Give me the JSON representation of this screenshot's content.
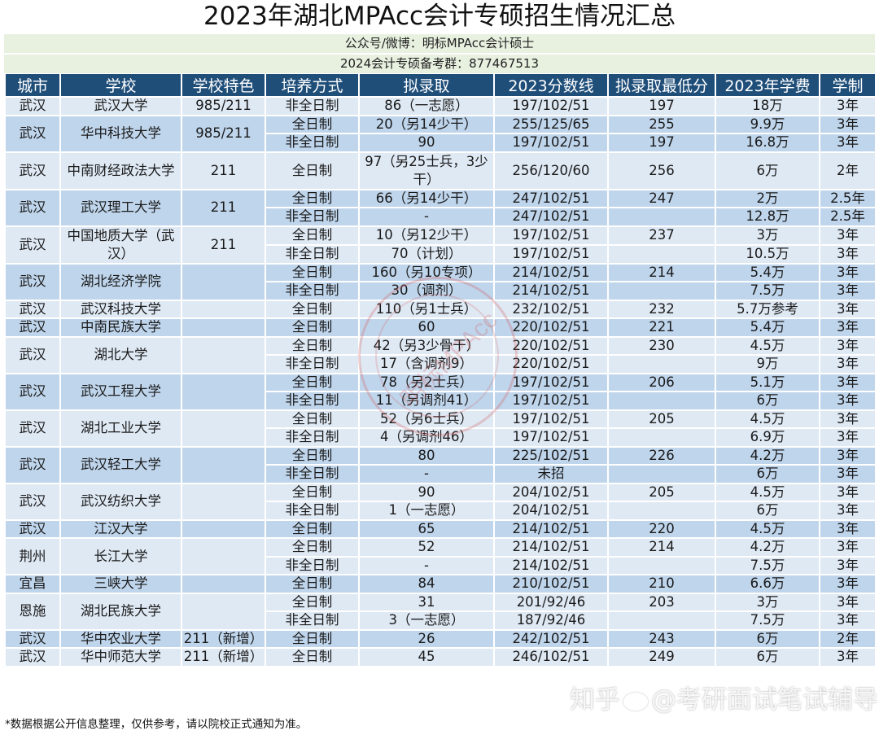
{
  "title": "2023年湖北MPAcc会计专硕招生情况汇总",
  "info_lines": [
    "公众号/微博：明标MPAcc会计硕士",
    "2024会计专硕备考群：877467513"
  ],
  "columns": [
    "城市",
    "学校",
    "学校特色",
    "培养方式",
    "拟录取",
    "2023分数线",
    "拟录取最低分",
    "2023年学费",
    "学制"
  ],
  "schools": [
    {
      "city": "武汉",
      "name": "武汉大学",
      "feature": "985/211",
      "rows": [
        {
          "mode": "非全日制",
          "admit": "86（一志愿）",
          "line": "197/102/51",
          "min": "197",
          "fee": "18万",
          "years": "3年"
        }
      ]
    },
    {
      "city": "武汉",
      "name": "华中科技大学",
      "feature": "985/211",
      "rows": [
        {
          "mode": "全日制",
          "admit": "20（另14少干）",
          "line": "255/125/65",
          "min": "255",
          "fee": "9.9万",
          "years": "3年"
        },
        {
          "mode": "非全日制",
          "admit": "90",
          "line": "197/102/51",
          "min": "197",
          "fee": "16.8万",
          "years": "3年"
        }
      ]
    },
    {
      "city": "武汉",
      "name": "中南财经政法大学",
      "feature": "211",
      "rows": [
        {
          "mode": "全日制",
          "admit": "97（另25士兵，3少干）",
          "line": "256/120/60",
          "min": "256",
          "fee": "6万",
          "years": "2年"
        }
      ]
    },
    {
      "city": "武汉",
      "name": "武汉理工大学",
      "feature": "211",
      "rows": [
        {
          "mode": "全日制",
          "admit": "66（另14少干）",
          "line": "247/102/51",
          "min": "247",
          "fee": "2万",
          "years": "2.5年"
        },
        {
          "mode": "非全日制",
          "admit": "-",
          "line": "247/102/51",
          "min": "",
          "fee": "12.8万",
          "years": "2.5年"
        }
      ]
    },
    {
      "city": "武汉",
      "name": "中国地质大学（武汉）",
      "feature": "211",
      "rows": [
        {
          "mode": "全日制",
          "admit": "10（另12少干）",
          "line": "197/102/51",
          "min": "237",
          "fee": "3万",
          "years": "3年"
        },
        {
          "mode": "非全日制",
          "admit": "70（计划）",
          "line": "197/102/51",
          "min": "",
          "fee": "10.5万",
          "years": "3年"
        }
      ]
    },
    {
      "city": "武汉",
      "name": "湖北经济学院",
      "feature": "",
      "rows": [
        {
          "mode": "全日制",
          "admit": "160（另10专项）",
          "line": "214/102/51",
          "min": "214",
          "fee": "5.4万",
          "years": "3年"
        },
        {
          "mode": "非全日制",
          "admit": "30（调剂）",
          "line": "214/102/51",
          "min": "",
          "fee": "7.5万",
          "years": "3年"
        }
      ]
    },
    {
      "city": "武汉",
      "name": "武汉科技大学",
      "feature": "",
      "rows": [
        {
          "mode": "全日制",
          "admit": "110（另1士兵）",
          "line": "232/102/51",
          "min": "232",
          "fee": "5.7万参考",
          "years": "3年"
        }
      ]
    },
    {
      "city": "武汉",
      "name": "中南民族大学",
      "feature": "",
      "rows": [
        {
          "mode": "全日制",
          "admit": "60",
          "line": "220/102/51",
          "min": "221",
          "fee": "5.4万",
          "years": "3年"
        }
      ]
    },
    {
      "city": "武汉",
      "name": "湖北大学",
      "feature": "",
      "rows": [
        {
          "mode": "全日制",
          "admit": "42（另3少骨干）",
          "line": "220/102/51",
          "min": "230",
          "fee": "4.5万",
          "years": "3年"
        },
        {
          "mode": "非全日制",
          "admit": "17（含调剂9）",
          "line": "220/102/51",
          "min": "",
          "fee": "9万",
          "years": "3年"
        }
      ]
    },
    {
      "city": "武汉",
      "name": "武汉工程大学",
      "feature": "",
      "rows": [
        {
          "mode": "全日制",
          "admit": "78（另2士兵）",
          "line": "197/102/51",
          "min": "206",
          "fee": "5.1万",
          "years": "3年"
        },
        {
          "mode": "非全日制",
          "admit": "11（另调剂41）",
          "line": "197/102/51",
          "min": "",
          "fee": "6万",
          "years": "3年"
        }
      ]
    },
    {
      "city": "武汉",
      "name": "湖北工业大学",
      "feature": "",
      "rows": [
        {
          "mode": "全日制",
          "admit": "52（另6士兵）",
          "line": "197/102/51",
          "min": "205",
          "fee": "4.5万",
          "years": "3年"
        },
        {
          "mode": "非全日制",
          "admit": "4（另调剂46）",
          "line": "197/102/51",
          "min": "",
          "fee": "6.9万",
          "years": "3年"
        }
      ]
    },
    {
      "city": "武汉",
      "name": "武汉轻工大学",
      "feature": "",
      "rows": [
        {
          "mode": "全日制",
          "admit": "80",
          "line": "225/102/51",
          "min": "226",
          "fee": "4.2万",
          "years": "3年"
        },
        {
          "mode": "非全日制",
          "admit": "-",
          "line": "未招",
          "min": "",
          "fee": "6万",
          "years": "3年"
        }
      ]
    },
    {
      "city": "武汉",
      "name": "武汉纺织大学",
      "feature": "",
      "rows": [
        {
          "mode": "全日制",
          "admit": "90",
          "line": "204/102/51",
          "min": "205",
          "fee": "4.5万",
          "years": "3年"
        },
        {
          "mode": "非全日制",
          "admit": "1（一志愿）",
          "line": "204/102/51",
          "min": "",
          "fee": "6万",
          "years": "3年"
        }
      ]
    },
    {
      "city": "武汉",
      "name": "江汉大学",
      "feature": "",
      "rows": [
        {
          "mode": "全日制",
          "admit": "65",
          "line": "214/102/51",
          "min": "220",
          "fee": "4.5万",
          "years": "3年"
        }
      ]
    },
    {
      "city": "荆州",
      "name": "长江大学",
      "feature": "",
      "rows": [
        {
          "mode": "全日制",
          "admit": "52",
          "line": "214/102/51",
          "min": "214",
          "fee": "4.2万",
          "years": "3年"
        },
        {
          "mode": "非全日制",
          "admit": "-",
          "line": "214/102/51",
          "min": "",
          "fee": "7.5万",
          "years": "3年"
        }
      ]
    },
    {
      "city": "宜昌",
      "name": "三峡大学",
      "feature": "",
      "rows": [
        {
          "mode": "全日制",
          "admit": "84",
          "line": "210/102/51",
          "min": "210",
          "fee": "6.6万",
          "years": "3年"
        }
      ]
    },
    {
      "city": "恩施",
      "name": "湖北民族大学",
      "feature": "",
      "rows": [
        {
          "mode": "全日制",
          "admit": "31",
          "line": "201/92/46",
          "min": "203",
          "fee": "3万",
          "years": "3年"
        },
        {
          "mode": "非全日制",
          "admit": "3（一志愿）",
          "line": "187/92/46",
          "min": "",
          "fee": "7.5万",
          "years": "3年"
        }
      ]
    },
    {
      "city": "武汉",
      "name": "华中农业大学",
      "feature": "211（新增）",
      "rows": [
        {
          "mode": "全日制",
          "admit": "26",
          "line": "242/102/51",
          "min": "243",
          "fee": "6万",
          "years": "2年"
        }
      ]
    },
    {
      "city": "武汉",
      "name": "华中师范大学",
      "feature": "211（新增）",
      "rows": [
        {
          "mode": "全日制",
          "admit": "45",
          "line": "246/102/51",
          "min": "249",
          "fee": "6万",
          "years": "3年"
        }
      ]
    }
  ],
  "footer_note": "*数据根据公开信息整理，仅供参考，请以院校正式通知为准。",
  "watermarks": {
    "stamp_text": "明标MPAcc",
    "overlay_text_left": "知乎",
    "overlay_text_right": "@考研面试笔试辅导"
  },
  "colors": {
    "header_bg": "#1f4e79",
    "info_bg": "#e8f1e0",
    "row_light": "#dfe9f4",
    "row_dark": "#bfd5ec"
  }
}
